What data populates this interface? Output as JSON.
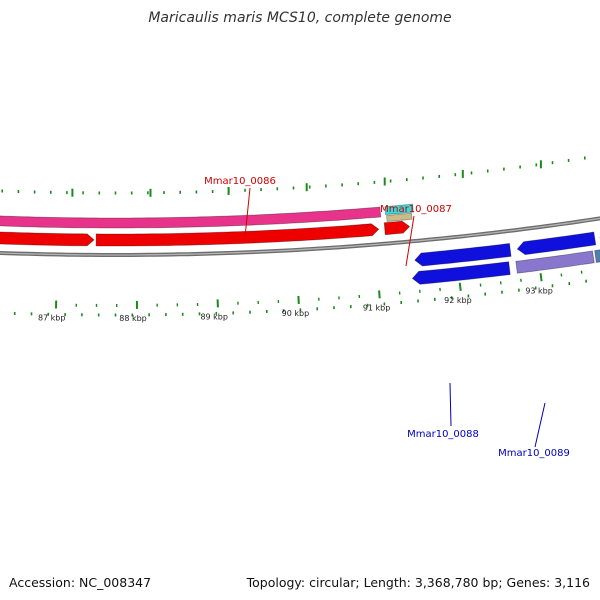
{
  "title": "Maricaulis maris MCS10, complete genome",
  "accession_text": "Accession: NC_008347",
  "summary_text": "Topology: circular; Length: 3,368,780 bp; Genes: 3,116",
  "topology": "circular",
  "length_bp": 3368780,
  "gene_count": 3116,
  "axis": {
    "unit": "kbp",
    "ticks": [
      {
        "value": 87,
        "label": "87 kbp"
      },
      {
        "value": 88,
        "label": "88 kbp"
      },
      {
        "value": 89,
        "label": "89 kbp"
      },
      {
        "value": 90,
        "label": "90 kbp"
      },
      {
        "value": 91,
        "label": "91 kbp"
      },
      {
        "value": 92,
        "label": "92 kbp"
      },
      {
        "value": 93,
        "label": "93 kbp"
      }
    ]
  },
  "gene_labels": [
    {
      "name": "Mmar10_0086",
      "color": "#cc0000"
    },
    {
      "name": "Mmar10_0087",
      "color": "#cc0000"
    },
    {
      "name": "Mmar10_0088",
      "color": "#0000bb"
    },
    {
      "name": "Mmar10_0089",
      "color": "#0000bb"
    }
  ],
  "colors": {
    "tick_green": "#1a8a1a",
    "backbone_gray": "#888888",
    "cds_pink": "#e8338a",
    "cds_red": "#ee0000",
    "cds_blue": "#1010dd",
    "cds_purple": "#8877cc",
    "cds_cyan": "#33dddd",
    "cds_tan": "#ccbb88",
    "cds_steel": "#4f7fb0"
  }
}
